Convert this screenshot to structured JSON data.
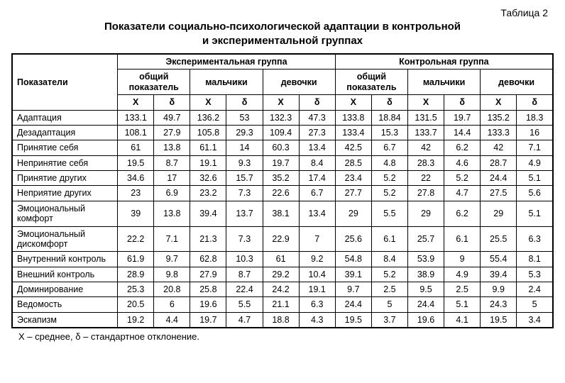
{
  "table_number": "Таблица 2",
  "title_line1": "Показатели социально-психологической адаптации в контрольной",
  "title_line2": "и экспериментальной группах",
  "headers": {
    "indicators": "Показатели",
    "exp_group": "Экспериментальная группа",
    "ctrl_group": "Контрольная группа",
    "total": "общий показатель",
    "boys": "мальчики",
    "girls": "девочки",
    "mean": "X",
    "sd": "δ"
  },
  "rows": [
    {
      "label": "Адаптация",
      "v": [
        "133.1",
        "49.7",
        "136.2",
        "53",
        "132.3",
        "47.3",
        "133.8",
        "18.84",
        "131.5",
        "19.7",
        "135.2",
        "18.3"
      ]
    },
    {
      "label": "Дезадаптация",
      "v": [
        "108.1",
        "27.9",
        "105.8",
        "29.3",
        "109.4",
        "27.3",
        "133.4",
        "15.3",
        "133.7",
        "14.4",
        "133.3",
        "16"
      ]
    },
    {
      "label": "Принятие себя",
      "v": [
        "61",
        "13.8",
        "61.1",
        "14",
        "60.3",
        "13.4",
        "42.5",
        "6.7",
        "42",
        "6.2",
        "42",
        "7.1"
      ]
    },
    {
      "label": "Непринятие себя",
      "v": [
        "19.5",
        "8.7",
        "19.1",
        "9.3",
        "19.7",
        "8.4",
        "28.5",
        "4.8",
        "28.3",
        "4.6",
        "28.7",
        "4.9"
      ]
    },
    {
      "label": "Принятие других",
      "v": [
        "34.6",
        "17",
        "32.6",
        "15.7",
        "35.2",
        "17.4",
        "23.4",
        "5.2",
        "22",
        "5.2",
        "24.4",
        "5.1"
      ]
    },
    {
      "label": "Неприятие других",
      "v": [
        "23",
        "6.9",
        "23.2",
        "7.3",
        "22.6",
        "6.7",
        "27.7",
        "5.2",
        "27.8",
        "4.7",
        "27.5",
        "5.6"
      ]
    },
    {
      "label": "Эмоциональный комфорт",
      "v": [
        "39",
        "13.8",
        "39.4",
        "13.7",
        "38.1",
        "13.4",
        "29",
        "5.5",
        "29",
        "6.2",
        "29",
        "5.1"
      ]
    },
    {
      "label": "Эмоциональный дискомфорт",
      "v": [
        "22.2",
        "7.1",
        "21.3",
        "7.3",
        "22.9",
        "7",
        "25.6",
        "6.1",
        "25.7",
        "6.1",
        "25.5",
        "6.3"
      ]
    },
    {
      "label": "Внутренний контроль",
      "v": [
        "61.9",
        "9.7",
        "62.8",
        "10.3",
        "61",
        "9.2",
        "54.8",
        "8.4",
        "53.9",
        "9",
        "55.4",
        "8.1"
      ]
    },
    {
      "label": "Внешний контроль",
      "v": [
        "28.9",
        "9.8",
        "27.9",
        "8.7",
        "29.2",
        "10.4",
        "39.1",
        "5.2",
        "38.9",
        "4.9",
        "39.4",
        "5.3"
      ]
    },
    {
      "label": "Доминирование",
      "v": [
        "25.3",
        "20.8",
        "25.8",
        "22.4",
        "24.2",
        "19.1",
        "9.7",
        "2.5",
        "9.5",
        "2.5",
        "9.9",
        "2.4"
      ]
    },
    {
      "label": "Ведомость",
      "v": [
        "20.5",
        "6",
        "19.6",
        "5.5",
        "21.1",
        "6.3",
        "24.4",
        "5",
        "24.4",
        "5.1",
        "24.3",
        "5"
      ]
    },
    {
      "label": "Эскапизм",
      "v": [
        "19.2",
        "4.4",
        "19.7",
        "4.7",
        "18.8",
        "4.3",
        "19.5",
        "3.7",
        "19.6",
        "4.1",
        "19.5",
        "3.4"
      ]
    }
  ],
  "footnote": "X – среднее, δ – стандартное отклонение."
}
